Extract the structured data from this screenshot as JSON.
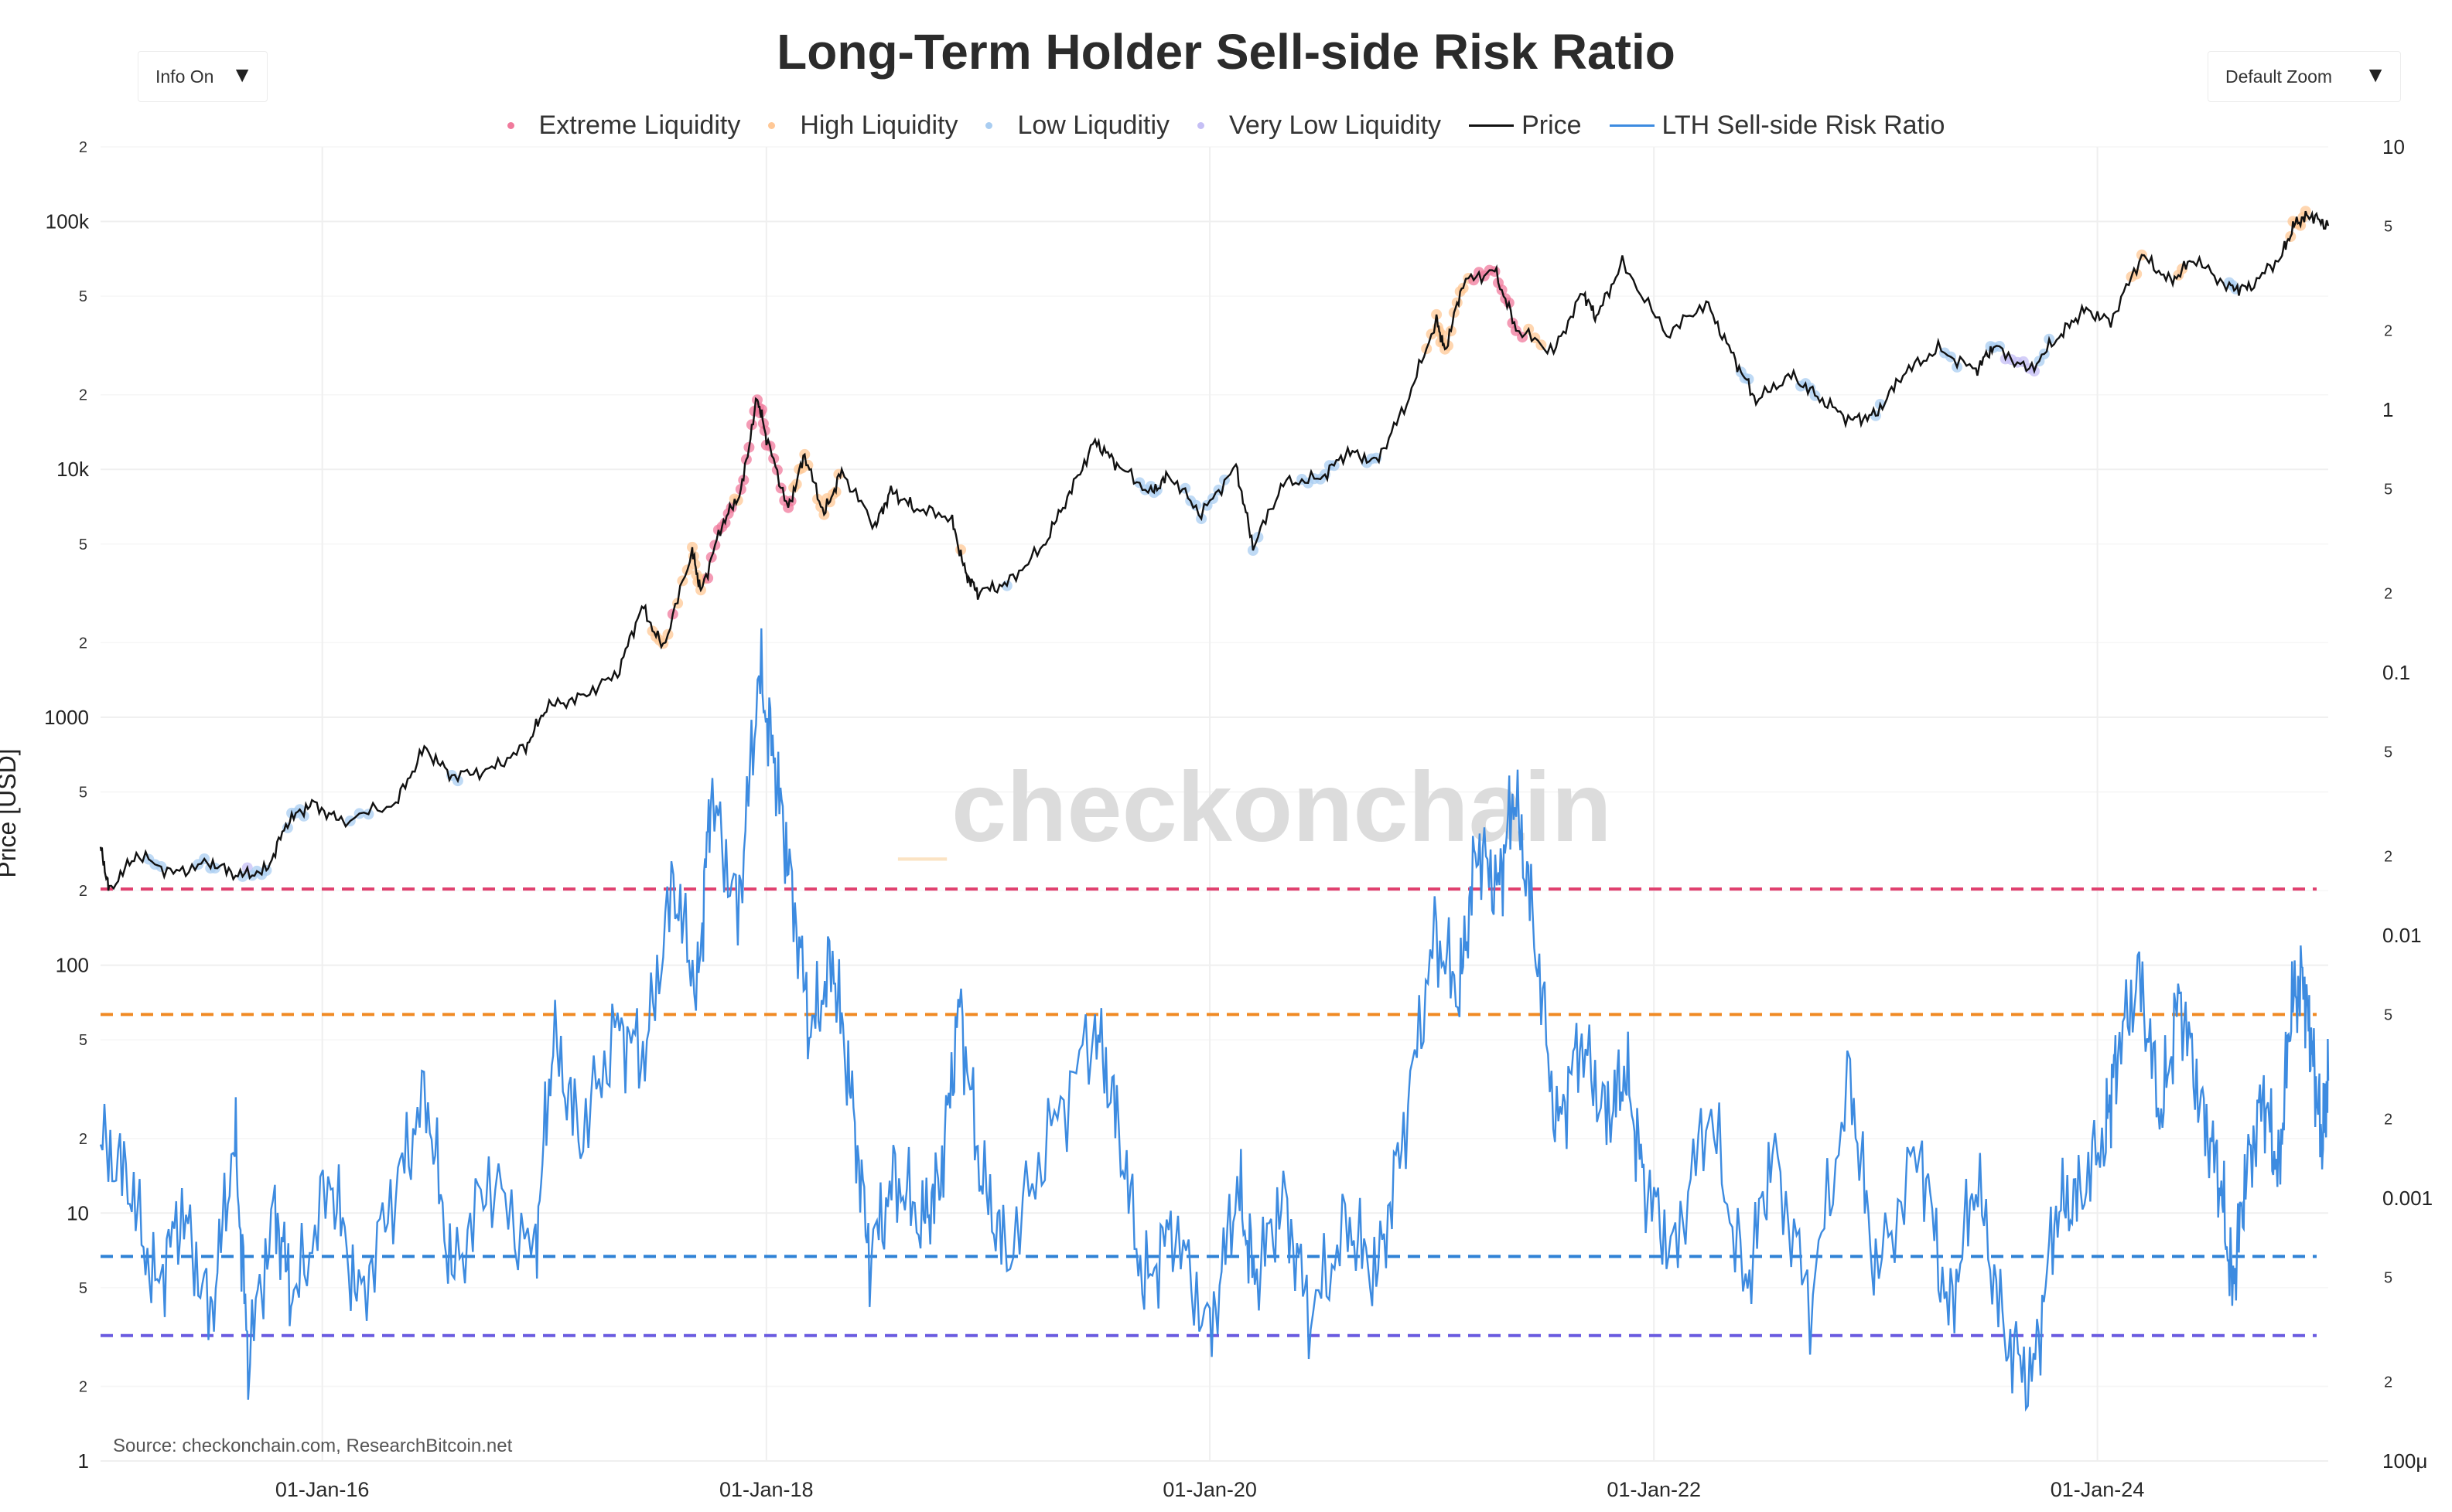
{
  "controls": {
    "info_toggle": "Info On",
    "zoom_select": "Default Zoom",
    "caret_icon": "triangle-down-icon"
  },
  "watermark": {
    "prefix": "_",
    "text": "checkonchain"
  },
  "source_text": "Source: checkonchain.com, ResearchBitcoin.net",
  "chart_data": {
    "type": "line",
    "title": "Long-Term Holder Sell-side Risk Ratio",
    "legend_placement": "top-center",
    "grid": true,
    "legend": [
      {
        "name": "Extreme Liquidity",
        "kind": "marker",
        "color": "#f07a9c"
      },
      {
        "name": "High Liquidity",
        "kind": "marker",
        "color": "#ffc896"
      },
      {
        "name": "Low Liquditiy",
        "kind": "marker",
        "color": "#a9cdf1"
      },
      {
        "name": "Very Low Liquidity",
        "kind": "marker",
        "color": "#c5bff5"
      },
      {
        "name": "Price",
        "kind": "line",
        "color": "#111111"
      },
      {
        "name": "LTH Sell-side Risk Ratio",
        "kind": "line",
        "color": "#3d8be0"
      }
    ],
    "x_axis": {
      "range": [
        "2015-01-01",
        "2025-01-15"
      ],
      "ticks": [
        {
          "date": "2016-01-01",
          "label": "01-Jan-16"
        },
        {
          "date": "2018-01-01",
          "label": "01-Jan-18"
        },
        {
          "date": "2020-01-01",
          "label": "01-Jan-20"
        },
        {
          "date": "2022-01-01",
          "label": "01-Jan-22"
        },
        {
          "date": "2024-01-01",
          "label": "01-Jan-24"
        }
      ]
    },
    "y_left": {
      "label": "Price [USD]",
      "scale": "log",
      "range": [
        1,
        200000
      ],
      "major_ticks": [
        {
          "value": 1,
          "label": "1"
        },
        {
          "value": 10,
          "label": "10"
        },
        {
          "value": 100,
          "label": "100"
        },
        {
          "value": 1000,
          "label": "1000"
        },
        {
          "value": 10000,
          "label": "10k"
        },
        {
          "value": 100000,
          "label": "100k"
        }
      ],
      "minor_ticks": [
        {
          "value": 2,
          "label": "2"
        },
        {
          "value": 5,
          "label": "5"
        },
        {
          "value": 20,
          "label": "2"
        },
        {
          "value": 50,
          "label": "5"
        },
        {
          "value": 200,
          "label": "2"
        },
        {
          "value": 500,
          "label": "5"
        },
        {
          "value": 2000,
          "label": "2"
        },
        {
          "value": 5000,
          "label": "5"
        },
        {
          "value": 20000,
          "label": "2"
        },
        {
          "value": 50000,
          "label": "5"
        },
        {
          "value": 200000,
          "label": "2"
        }
      ]
    },
    "y_right": {
      "label": "",
      "scale": "log",
      "range": [
        0.0001,
        10
      ],
      "major_ticks": [
        {
          "value": 0.0001,
          "label": "100μ"
        },
        {
          "value": 0.001,
          "label": "0.001"
        },
        {
          "value": 0.01,
          "label": "0.01"
        },
        {
          "value": 0.1,
          "label": "0.1"
        },
        {
          "value": 1,
          "label": "1"
        },
        {
          "value": 10,
          "label": "10"
        }
      ],
      "minor_ticks": [
        {
          "value": 0.0002,
          "label": "2"
        },
        {
          "value": 0.0005,
          "label": "5"
        },
        {
          "value": 0.002,
          "label": "2"
        },
        {
          "value": 0.005,
          "label": "5"
        },
        {
          "value": 0.02,
          "label": "2"
        },
        {
          "value": 0.05,
          "label": "5"
        },
        {
          "value": 0.2,
          "label": "2"
        },
        {
          "value": 0.5,
          "label": "5"
        },
        {
          "value": 2,
          "label": "2"
        },
        {
          "value": 5,
          "label": "5"
        }
      ]
    },
    "thresholds": [
      {
        "name": "extreme",
        "value": 0.015,
        "color": "#e0406e"
      },
      {
        "name": "high",
        "value": 0.005,
        "color": "#f08a24"
      },
      {
        "name": "low",
        "value": 0.0006,
        "color": "#2f82d6"
      },
      {
        "name": "very-low",
        "value": 0.0003,
        "color": "#6a5be0"
      }
    ],
    "series": [
      {
        "name": "Price",
        "axis": "left",
        "color": "#111111",
        "points": [
          [
            "2015-01-01",
            300
          ],
          [
            "2015-01-15",
            200
          ],
          [
            "2015-03-01",
            280
          ],
          [
            "2015-05-01",
            235
          ],
          [
            "2015-07-01",
            260
          ],
          [
            "2015-08-15",
            230
          ],
          [
            "2015-10-01",
            240
          ],
          [
            "2015-11-05",
            380
          ],
          [
            "2015-12-15",
            450
          ],
          [
            "2016-02-01",
            380
          ],
          [
            "2016-05-01",
            450
          ],
          [
            "2016-06-17",
            750
          ],
          [
            "2016-08-01",
            580
          ],
          [
            "2016-10-01",
            610
          ],
          [
            "2016-12-01",
            760
          ],
          [
            "2017-01-04",
            1100
          ],
          [
            "2017-03-01",
            1200
          ],
          [
            "2017-05-01",
            1500
          ],
          [
            "2017-06-10",
            2800
          ],
          [
            "2017-07-15",
            1900
          ],
          [
            "2017-09-01",
            4700
          ],
          [
            "2017-09-15",
            3200
          ],
          [
            "2017-10-20",
            6000
          ],
          [
            "2017-11-20",
            8100
          ],
          [
            "2017-12-17",
            19500
          ],
          [
            "2018-01-01",
            13500
          ],
          [
            "2018-02-06",
            6900
          ],
          [
            "2018-03-05",
            11500
          ],
          [
            "2018-04-06",
            6600
          ],
          [
            "2018-05-05",
            9800
          ],
          [
            "2018-06-29",
            5900
          ],
          [
            "2018-07-25",
            8200
          ],
          [
            "2018-09-01",
            7000
          ],
          [
            "2018-11-01",
            6400
          ],
          [
            "2018-11-25",
            3800
          ],
          [
            "2018-12-15",
            3200
          ],
          [
            "2019-02-01",
            3450
          ],
          [
            "2019-04-02",
            4900
          ],
          [
            "2019-05-15",
            8000
          ],
          [
            "2019-06-26",
            13000
          ],
          [
            "2019-08-01",
            10500
          ],
          [
            "2019-09-26",
            8000
          ],
          [
            "2019-10-26",
            9500
          ],
          [
            "2019-12-18",
            6600
          ],
          [
            "2020-02-13",
            10300
          ],
          [
            "2020-03-12",
            4900
          ],
          [
            "2020-05-01",
            8800
          ],
          [
            "2020-07-01",
            9200
          ],
          [
            "2020-08-15",
            11800
          ],
          [
            "2020-10-01",
            10700
          ],
          [
            "2020-11-20",
            18500
          ],
          [
            "2021-01-08",
            40000
          ],
          [
            "2021-01-22",
            30000
          ],
          [
            "2021-02-21",
            57000
          ],
          [
            "2021-04-14",
            63500
          ],
          [
            "2021-05-19",
            37000
          ],
          [
            "2021-07-20",
            29800
          ],
          [
            "2021-09-06",
            52000
          ],
          [
            "2021-09-28",
            41000
          ],
          [
            "2021-11-10",
            68000
          ],
          [
            "2022-01-22",
            35000
          ],
          [
            "2022-03-28",
            47000
          ],
          [
            "2022-05-12",
            28500
          ],
          [
            "2022-06-18",
            19000
          ],
          [
            "2022-08-15",
            24000
          ],
          [
            "2022-10-01",
            19300
          ],
          [
            "2022-11-21",
            15800
          ],
          [
            "2023-01-01",
            16600
          ],
          [
            "2023-02-15",
            24300
          ],
          [
            "2023-04-14",
            30500
          ],
          [
            "2023-06-15",
            25100
          ],
          [
            "2023-07-14",
            31500
          ],
          [
            "2023-09-11",
            25000
          ],
          [
            "2023-10-30",
            34500
          ],
          [
            "2023-12-10",
            44000
          ],
          [
            "2024-01-23",
            39500
          ],
          [
            "2024-03-14",
            73000
          ],
          [
            "2024-05-01",
            57000
          ],
          [
            "2024-06-07",
            71000
          ],
          [
            "2024-08-05",
            54000
          ],
          [
            "2024-09-06",
            54000
          ],
          [
            "2024-10-29",
            72000
          ],
          [
            "2024-11-22",
            99000
          ],
          [
            "2024-12-17",
            106000
          ],
          [
            "2025-01-15",
            96000
          ]
        ]
      },
      {
        "name": "LTH Sell-side Risk Ratio",
        "axis": "right",
        "color": "#3d8be0",
        "points": [
          [
            "2015-01-01",
            0.0016
          ],
          [
            "2015-02-15",
            0.0012
          ],
          [
            "2015-04-01",
            0.00045
          ],
          [
            "2015-05-15",
            0.0009
          ],
          [
            "2015-07-01",
            0.00035
          ],
          [
            "2015-08-10",
            0.0017
          ],
          [
            "2015-09-01",
            0.00025
          ],
          [
            "2015-10-15",
            0.0009
          ],
          [
            "2015-11-15",
            0.0004
          ],
          [
            "2016-01-15",
            0.0012
          ],
          [
            "2016-03-01",
            0.0004
          ],
          [
            "2016-05-01",
            0.0011
          ],
          [
            "2016-06-20",
            0.0025
          ],
          [
            "2016-08-01",
            0.0005
          ],
          [
            "2016-10-01",
            0.0012
          ],
          [
            "2016-12-15",
            0.0006
          ],
          [
            "2017-01-15",
            0.004
          ],
          [
            "2017-03-01",
            0.0017
          ],
          [
            "2017-05-01",
            0.0045
          ],
          [
            "2017-06-15",
            0.0035
          ],
          [
            "2017-08-01",
            0.016
          ],
          [
            "2017-09-10",
            0.006
          ],
          [
            "2017-10-01",
            0.035
          ],
          [
            "2017-11-15",
            0.012
          ],
          [
            "2017-12-20",
            0.1
          ],
          [
            "2018-01-15",
            0.045
          ],
          [
            "2018-02-10",
            0.016
          ],
          [
            "2018-03-15",
            0.0042
          ],
          [
            "2018-04-20",
            0.008
          ],
          [
            "2018-05-20",
            0.0025
          ],
          [
            "2018-06-20",
            0.0006
          ],
          [
            "2018-08-01",
            0.0012
          ],
          [
            "2018-09-15",
            0.0008
          ],
          [
            "2018-10-15",
            0.0012
          ],
          [
            "2018-11-15",
            0.0055
          ],
          [
            "2018-12-20",
            0.0012
          ],
          [
            "2019-02-01",
            0.0006
          ],
          [
            "2019-04-15",
            0.0018
          ],
          [
            "2019-06-26",
            0.0045
          ],
          [
            "2019-08-01",
            0.002
          ],
          [
            "2019-09-15",
            0.00045
          ],
          [
            "2019-11-01",
            0.0008
          ],
          [
            "2020-01-01",
            0.0003
          ],
          [
            "2020-02-15",
            0.0011
          ],
          [
            "2020-03-15",
            0.0005
          ],
          [
            "2020-05-01",
            0.001
          ],
          [
            "2020-06-15",
            0.00035
          ],
          [
            "2020-08-15",
            0.0008
          ],
          [
            "2020-10-01",
            0.0005
          ],
          [
            "2020-11-15",
            0.0018
          ],
          [
            "2021-01-05",
            0.01
          ],
          [
            "2021-02-15",
            0.006
          ],
          [
            "2021-03-15",
            0.022
          ],
          [
            "2021-04-20",
            0.015
          ],
          [
            "2021-05-15",
            0.035
          ],
          [
            "2021-06-15",
            0.012
          ],
          [
            "2021-07-25",
            0.0018
          ],
          [
            "2021-09-01",
            0.004
          ],
          [
            "2021-10-15",
            0.002
          ],
          [
            "2021-11-15",
            0.003
          ],
          [
            "2021-12-15",
            0.0012
          ],
          [
            "2022-02-01",
            0.0006
          ],
          [
            "2022-04-01",
            0.0022
          ],
          [
            "2022-06-01",
            0.00045
          ],
          [
            "2022-07-15",
            0.0015
          ],
          [
            "2022-09-15",
            0.0004
          ],
          [
            "2022-11-20",
            0.0028
          ],
          [
            "2023-01-01",
            0.0005
          ],
          [
            "2023-03-15",
            0.0016
          ],
          [
            "2023-05-01",
            0.00035
          ],
          [
            "2023-06-15",
            0.0012
          ],
          [
            "2023-08-01",
            0.0003
          ],
          [
            "2023-09-15",
            0.0002
          ],
          [
            "2023-10-25",
            0.0009
          ],
          [
            "2023-12-01",
            0.001
          ],
          [
            "2024-01-15",
            0.0018
          ],
          [
            "2024-02-01",
            0.0035
          ],
          [
            "2024-03-10",
            0.007
          ],
          [
            "2024-04-15",
            0.002
          ],
          [
            "2024-05-15",
            0.006
          ],
          [
            "2024-06-20",
            0.0022
          ],
          [
            "2024-07-20",
            0.0012
          ],
          [
            "2024-08-10",
            0.00045
          ],
          [
            "2024-09-01",
            0.0012
          ],
          [
            "2024-10-01",
            0.0025
          ],
          [
            "2024-10-25",
            0.0012
          ],
          [
            "2024-11-15",
            0.0055
          ],
          [
            "2024-12-05",
            0.0068
          ],
          [
            "2024-12-20",
            0.0035
          ],
          [
            "2025-01-05",
            0.0016
          ],
          [
            "2025-01-15",
            0.0028
          ]
        ]
      }
    ]
  }
}
